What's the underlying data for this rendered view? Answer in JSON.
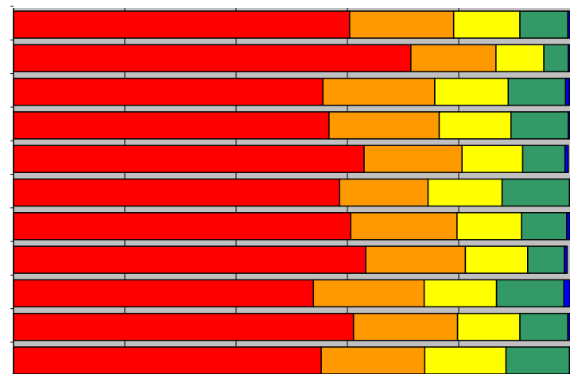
{
  "chart_data": {
    "type": "bar",
    "orientation": "horizontal",
    "stacked": true,
    "title": "",
    "xlabel": "",
    "ylabel": "",
    "xlim": [
      0,
      100
    ],
    "grid": true,
    "legend": "none",
    "categories": [
      "",
      "",
      "",
      "",
      "",
      "",
      "",
      "",
      "",
      "",
      ""
    ],
    "series": [
      {
        "color": "#ff0000",
        "values": [
          60.4,
          71.4,
          55.6,
          56.7,
          63.0,
          58.6,
          60.6,
          63.3,
          53.9,
          61.1,
          55.3
        ]
      },
      {
        "color": "#ff9900",
        "values": [
          18.7,
          15.3,
          20.1,
          19.8,
          17.6,
          15.9,
          19.1,
          17.9,
          19.9,
          18.7,
          18.6
        ]
      },
      {
        "color": "#ffff00",
        "values": [
          11.9,
          8.6,
          13.2,
          12.9,
          10.9,
          13.3,
          11.6,
          11.2,
          13.0,
          11.2,
          14.6
        ]
      },
      {
        "color": "#339966",
        "values": [
          8.6,
          4.4,
          10.3,
          10.3,
          7.6,
          12.1,
          8.1,
          6.6,
          12.1,
          8.6,
          11.4
        ]
      },
      {
        "color": "#0000ff",
        "values": [
          0.4,
          0.3,
          0.7,
          0.3,
          0.6,
          0.1,
          0.6,
          0.5,
          1.1,
          0.4,
          0.1
        ]
      }
    ]
  }
}
